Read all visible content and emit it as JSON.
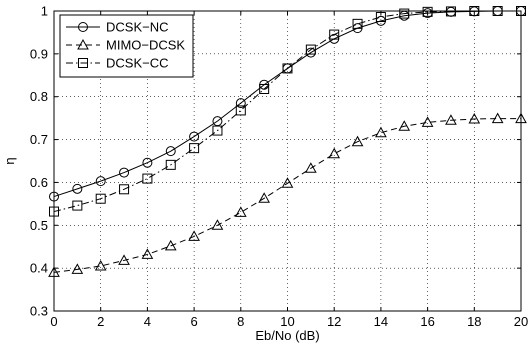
{
  "chart_data": {
    "type": "line",
    "xlabel": "Eb/No (dB)",
    "ylabel": "η",
    "xlim": [
      0,
      20
    ],
    "ylim": [
      0.3,
      1
    ],
    "xticks": [
      0,
      2,
      4,
      6,
      8,
      10,
      12,
      14,
      16,
      18,
      20
    ],
    "yticks": [
      0.3,
      0.4,
      0.5,
      0.6,
      0.7,
      0.8,
      0.9,
      1
    ],
    "grid": "dotted",
    "legend_position": "top-left",
    "x": [
      0,
      1,
      2,
      3,
      4,
      5,
      6,
      7,
      8,
      9,
      10,
      11,
      12,
      13,
      14,
      15,
      16,
      17,
      18,
      19,
      20
    ],
    "series": [
      {
        "name": "DCSK−NC",
        "marker": "circle",
        "line": "solid",
        "values": [
          0.567,
          0.585,
          0.603,
          0.623,
          0.646,
          0.673,
          0.707,
          0.743,
          0.785,
          0.828,
          0.866,
          0.903,
          0.935,
          0.96,
          0.977,
          0.989,
          0.995,
          0.998,
          0.999,
          1.0,
          1.0
        ]
      },
      {
        "name": "MIMO−DCSK",
        "marker": "triangle",
        "line": "dashed",
        "values": [
          0.39,
          0.397,
          0.405,
          0.418,
          0.432,
          0.452,
          0.474,
          0.5,
          0.53,
          0.563,
          0.598,
          0.633,
          0.667,
          0.695,
          0.716,
          0.731,
          0.74,
          0.745,
          0.748,
          0.749,
          0.749
        ]
      },
      {
        "name": "DCSK−CC",
        "marker": "square",
        "line": "dashdot",
        "values": [
          0.532,
          0.546,
          0.562,
          0.584,
          0.609,
          0.641,
          0.68,
          0.721,
          0.768,
          0.818,
          0.866,
          0.91,
          0.945,
          0.97,
          0.986,
          0.994,
          0.998,
          0.999,
          1.0,
          1.0,
          1.0
        ]
      }
    ]
  }
}
